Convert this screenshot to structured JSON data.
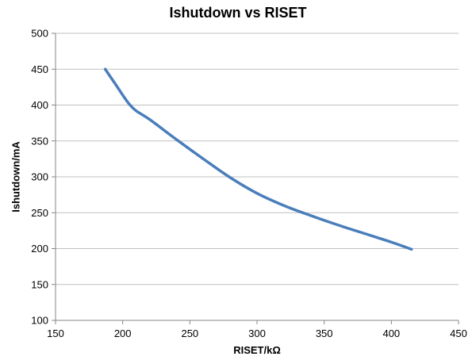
{
  "chart_data": {
    "type": "line",
    "title": "Ishutdown vs RISET",
    "xlabel": "RISET/kΩ",
    "ylabel": "Ishutdown/mA",
    "xlim": [
      150,
      450
    ],
    "ylim": [
      100,
      500
    ],
    "xticks": [
      150,
      200,
      250,
      300,
      350,
      400,
      450
    ],
    "yticks": [
      100,
      150,
      200,
      250,
      300,
      350,
      400,
      450,
      500
    ],
    "grid": "horizontal",
    "colors": {
      "series": "#4a7ebb",
      "grid": "#c0c0c0",
      "axis": "#868686"
    },
    "series": [
      {
        "x": [
          187,
          195,
          200,
          205,
          210,
          220,
          240,
          260,
          280,
          300,
          320,
          340,
          360,
          380,
          400,
          415
        ],
        "y": [
          450,
          428,
          414,
          401,
          392,
          380,
          352,
          325,
          299,
          277,
          260,
          246,
          233,
          221,
          209,
          199
        ]
      }
    ]
  }
}
